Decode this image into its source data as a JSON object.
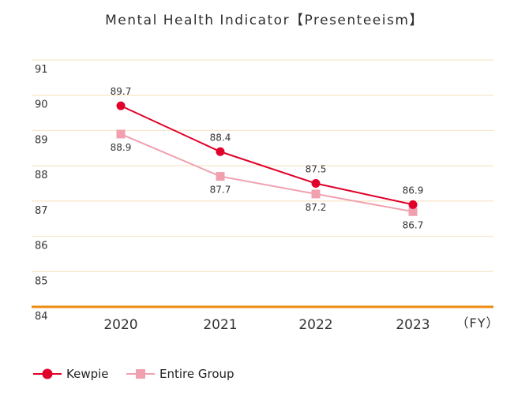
{
  "chart_data": {
    "type": "line",
    "title": "Mental Health Indicator【Presenteeism】",
    "xlabel": "（FY）",
    "ylabel": "",
    "categories": [
      "2020",
      "2021",
      "2022",
      "2023"
    ],
    "ylim": [
      84,
      91
    ],
    "yticks": [
      84,
      85,
      86,
      87,
      88,
      89,
      90,
      91
    ],
    "grid": true,
    "legend_position": "bottom-left",
    "series": [
      {
        "name": "Kewpie",
        "values": [
          89.7,
          88.4,
          87.5,
          86.9
        ],
        "labels": [
          "89.7",
          "88.4",
          "87.5",
          "86.9"
        ],
        "color": "#e0002a",
        "marker": "circle",
        "label_position": "above"
      },
      {
        "name": "Entire Group",
        "values": [
          88.9,
          87.7,
          87.2,
          86.7
        ],
        "labels": [
          "88.9",
          "87.7",
          "87.2",
          "86.7"
        ],
        "color": "#f0a0ae",
        "marker": "square",
        "label_position": "below"
      }
    ],
    "colors": {
      "gridline": "#f8e6c8",
      "baseline": "#ee8a12",
      "text": "#333333"
    }
  }
}
